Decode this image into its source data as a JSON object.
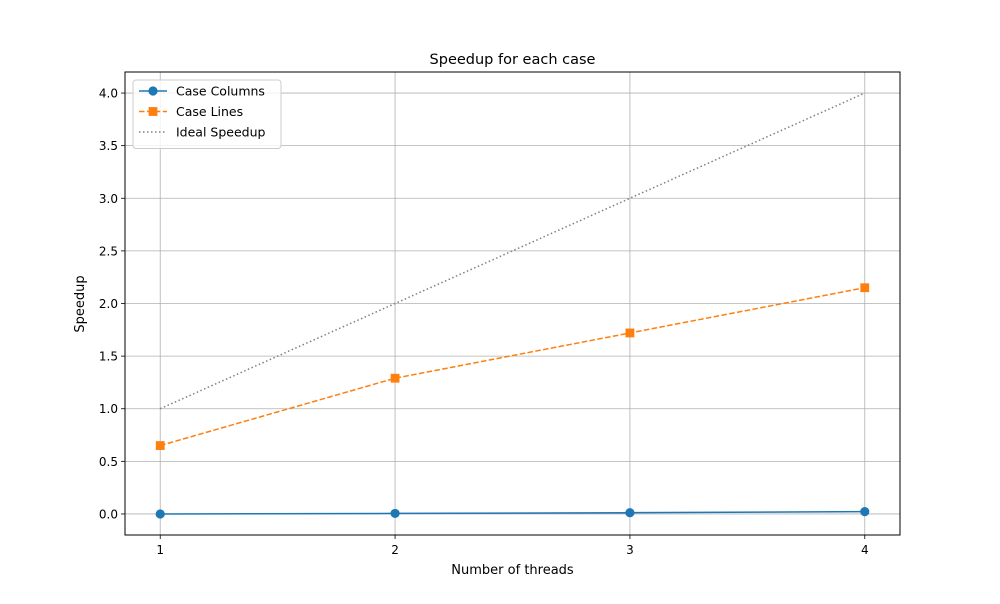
{
  "chart_data": {
    "type": "line",
    "title": "Speedup for each case",
    "xlabel": "Number of threads",
    "ylabel": "Speedup",
    "x": [
      1,
      2,
      3,
      4
    ],
    "xlim": [
      0.85,
      4.15
    ],
    "ylim": [
      -0.2,
      4.2
    ],
    "xticks": [
      1,
      2,
      3,
      4
    ],
    "xtick_labels": [
      "1",
      "2",
      "3",
      "4"
    ],
    "yticks": [
      0.0,
      0.5,
      1.0,
      1.5,
      2.0,
      2.5,
      3.0,
      3.5,
      4.0
    ],
    "ytick_labels": [
      "0.0",
      "0.5",
      "1.0",
      "1.5",
      "2.0",
      "2.5",
      "3.0",
      "3.5",
      "4.0"
    ],
    "grid": true,
    "legend_position": "upper-left",
    "series": [
      {
        "name": "Case Columns",
        "values": [
          0.0,
          0.005,
          0.012,
          0.022
        ],
        "color": "#1f77b4",
        "line_style": "solid",
        "marker": "circle"
      },
      {
        "name": "Case Lines",
        "values": [
          0.65,
          1.29,
          1.72,
          2.15
        ],
        "color": "#ff7f0e",
        "line_style": "dashed",
        "marker": "square"
      },
      {
        "name": "Ideal Speedup",
        "values": [
          1,
          2,
          3,
          4
        ],
        "color": "#808080",
        "line_style": "dotted",
        "marker": "none"
      }
    ]
  }
}
